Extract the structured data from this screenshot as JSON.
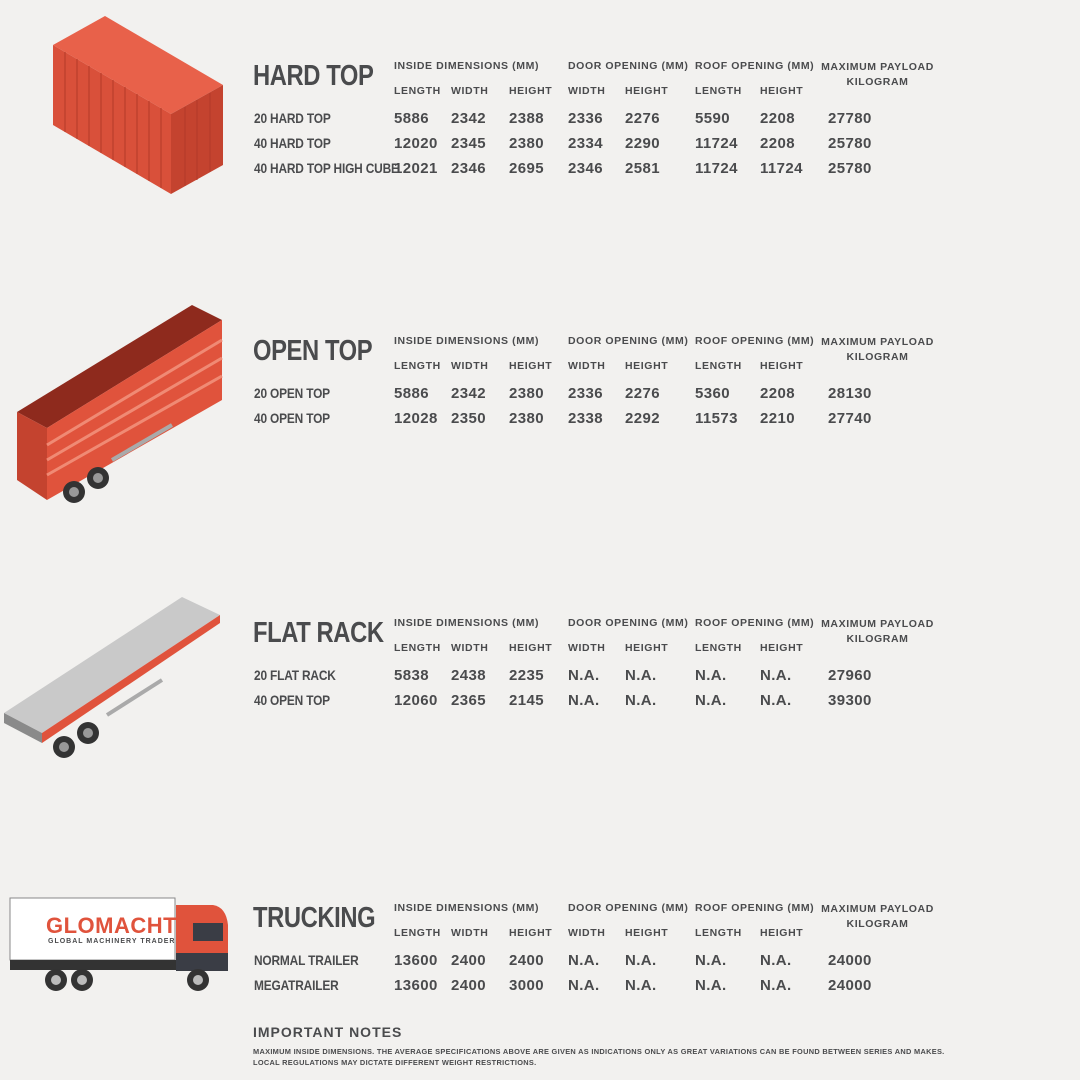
{
  "columns": {
    "inside_dimensions": "INSIDE DIMENSIONS (MM)",
    "door_opening": "DOOR OPENING (MM)",
    "roof_opening": "ROOF OPENING (MM)",
    "payload_line1": "MAXIMUM PAYLOAD",
    "payload_line2": "KILOGRAM",
    "length": "LENGTH",
    "width": "WIDTH",
    "height": "HEIGHT"
  },
  "sections": [
    {
      "title": "HARD TOP",
      "rows": [
        [
          "20 HARD TOP",
          "5886",
          "2342",
          "2388",
          "2336",
          "2276",
          "5590",
          "2208",
          "27780"
        ],
        [
          "40 HARD TOP",
          "12020",
          "2345",
          "2380",
          "2334",
          "2290",
          "11724",
          "2208",
          "25780"
        ],
        [
          "40 HARD TOP HIGH CUBE",
          "12021",
          "2346",
          "2695",
          "2346",
          "2581",
          "11724",
          "11724",
          "25780"
        ]
      ]
    },
    {
      "title": "OPEN TOP",
      "rows": [
        [
          "20 OPEN TOP",
          "5886",
          "2342",
          "2380",
          "2336",
          "2276",
          "5360",
          "2208",
          "28130"
        ],
        [
          "40 OPEN TOP",
          "12028",
          "2350",
          "2380",
          "2338",
          "2292",
          "11573",
          "2210",
          "27740"
        ]
      ]
    },
    {
      "title": "FLAT RACK",
      "rows": [
        [
          "20 FLAT RACK",
          "5838",
          "2438",
          "2235",
          "N.A.",
          "N.A.",
          "N.A.",
          "N.A.",
          "27960"
        ],
        [
          "40 OPEN TOP",
          "12060",
          "2365",
          "2145",
          "N.A.",
          "N.A.",
          "N.A.",
          "N.A.",
          "39300"
        ]
      ]
    },
    {
      "title": "TRUCKING",
      "rows": [
        [
          "NORMAL TRAILER",
          "13600",
          "2400",
          "2400",
          "N.A.",
          "N.A.",
          "N.A.",
          "N.A.",
          "24000"
        ],
        [
          "MEGATRAILER",
          "13600",
          "2400",
          "3000",
          "N.A.",
          "N.A.",
          "N.A.",
          "N.A.",
          "24000"
        ]
      ]
    }
  ],
  "logo": {
    "brand": "GLOMACHT",
    "tagline": "GLOBAL MACHINERY TRADER"
  },
  "notes": {
    "title": "IMPORTANT NOTES",
    "line1": "MAXIMUM INSIDE DIMENSIONS. THE AVERAGE SPECIFICATIONS ABOVE ARE GIVEN AS INDICATIONS ONLY AS GREAT VARIATIONS CAN BE FOUND BETWEEN SERIES AND MAKES.",
    "line2": "LOCAL REGULATIONS MAY DICTATE DIFFERENT WEIGHT RESTRICTIONS."
  },
  "colors": {
    "text": "#4a4b4d",
    "container_red": "#e0533c",
    "background": "#f2f1ef",
    "flatbed_gray": "#c9c9c9"
  }
}
